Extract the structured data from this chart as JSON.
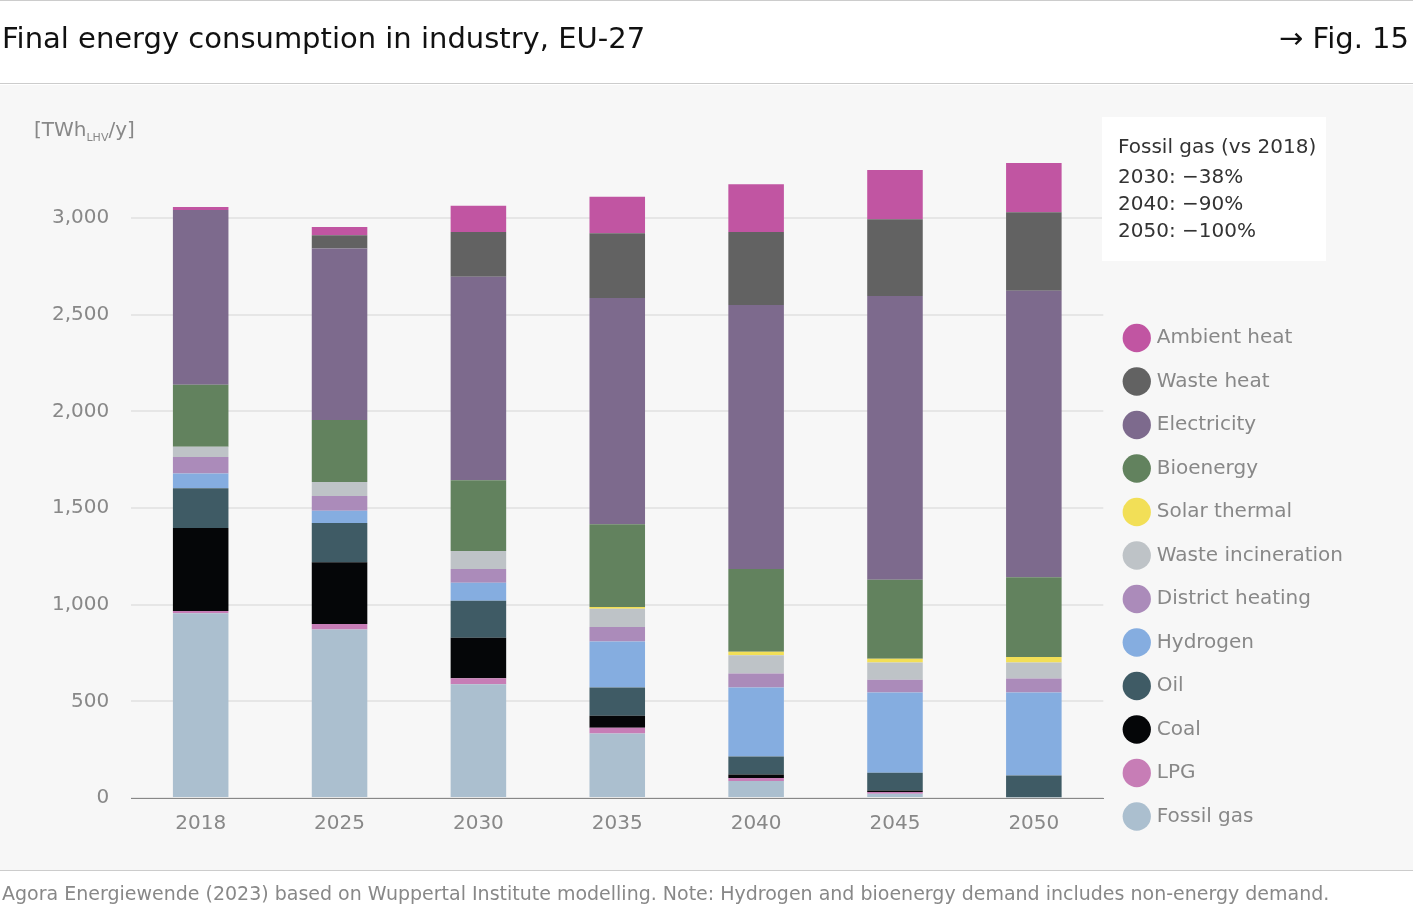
{
  "chart_data": {
    "type": "bar",
    "title": "Final energy consumption in industry, EU-27",
    "ylabel": "[TWh$_{LHV}$/y]",
    "annotations": [
      "→ Fig. 15",
      "Fossil gas (vs 2018)",
      "2030: −38%",
      "2040: −90%",
      "2050: −100%",
      "Agora Energiewende (2023) based on Wuppertal Institute modelling. Note: Hydrogen and bioenergy demand includes non-energy demand."
    ],
    "categories": [
      "2018",
      "2025",
      "2030",
      "2035",
      "2040",
      "2045",
      "2050"
    ],
    "stacked": true,
    "ylim": [
      0,
      3300
    ],
    "yticks": [
      0,
      500,
      {
        "value": 1000,
        "label": "1,000"
      },
      {
        "value": 1500,
        "label": "1,500"
      },
      {
        "value": 2000,
        "label": "2,000"
      },
      {
        "value": 2500,
        "label": "2,500"
      },
      {
        "value": 3000,
        "label": "3,000"
      }
    ],
    "grid": "y",
    "legend": "right",
    "series": [
      {
        "name": "Fossil gas",
        "color": "#abbfcf",
        "values": [
          956,
          872,
          589,
          333,
          88,
          22,
          4
        ]
      },
      {
        "name": "LPG",
        "color": "#c77db6",
        "values": [
          11,
          28,
          30,
          30,
          15,
          9,
          0
        ]
      },
      {
        "name": "Coal",
        "color": "#050608",
        "values": [
          429,
          320,
          210,
          62,
          19,
          8,
          0
        ]
      },
      {
        "name": "Oil",
        "color": "#3f5b65",
        "values": [
          206,
          202,
          191,
          146,
          93,
          92,
          112
        ]
      },
      {
        "name": "Hydrogen",
        "color": "#85ade0",
        "values": [
          76,
          64,
          93,
          239,
          356,
          415,
          430
        ]
      },
      {
        "name": "District heating",
        "color": "#ab8bba",
        "values": [
          86,
          76,
          71,
          75,
          73,
          65,
          72
        ]
      },
      {
        "name": "Waste incineration",
        "color": "#bec3c7",
        "values": [
          53,
          73,
          94,
          94,
          95,
          90,
          83
        ]
      },
      {
        "name": "Solar thermal",
        "color": "#f2df57",
        "values": [
          0,
          0,
          0,
          9,
          17,
          19,
          28
        ]
      },
      {
        "name": "Bioenergy",
        "color": "#62825e",
        "values": [
          320,
          320,
          365,
          428,
          428,
          409,
          413
        ]
      },
      {
        "name": "Electricity",
        "color": "#7d6a8d",
        "values": [
          905,
          887,
          1053,
          1170,
          1366,
          1467,
          1482
        ]
      },
      {
        "name": "Waste heat",
        "color": "#626262",
        "values": [
          0,
          69,
          232,
          335,
          378,
          397,
          406
        ]
      },
      {
        "name": "Ambient heat",
        "color": "#c155a2",
        "values": [
          15,
          43,
          135,
          189,
          247,
          255,
          255
        ]
      }
    ]
  }
}
